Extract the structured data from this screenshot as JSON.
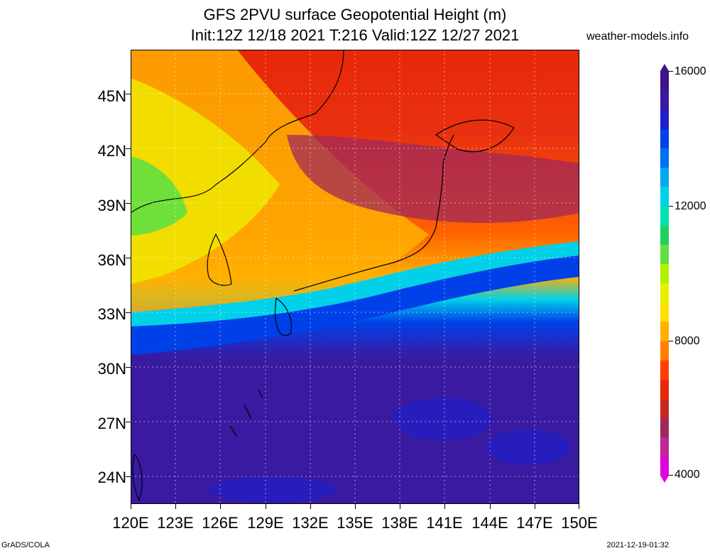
{
  "title_line1": "GFS 2PVU surface Geopotential Height (m)",
  "title_line2": "Init:12Z 12/18 2021 T:216 Valid:12Z 12/27 2021",
  "site": "weather-models.info",
  "lat_labels": [
    "45N",
    "42N",
    "39N",
    "36N",
    "33N",
    "30N",
    "27N",
    "24N"
  ],
  "lon_labels": [
    "120E",
    "123E",
    "126E",
    "129E",
    "132E",
    "135E",
    "138E",
    "141E",
    "144E",
    "147E",
    "150E"
  ],
  "colorbar": {
    "labels": [
      "16000",
      "12000",
      "8000",
      "4000"
    ],
    "colors": [
      "#e000e0",
      "#c02898",
      "#a0285a",
      "#c82820",
      "#e82808",
      "#ff4000",
      "#ff8000",
      "#ffb000",
      "#ffe000",
      "#e8f000",
      "#b0f000",
      "#60e040",
      "#20d060",
      "#00e0b0",
      "#00d0e8",
      "#00a8f0",
      "#0070f0",
      "#0040e8",
      "#2020c8",
      "#3a1aa0",
      "#40148a"
    ]
  },
  "footer_left": "GrADS/COLA",
  "footer_right": "2021-12-19-01:32"
}
